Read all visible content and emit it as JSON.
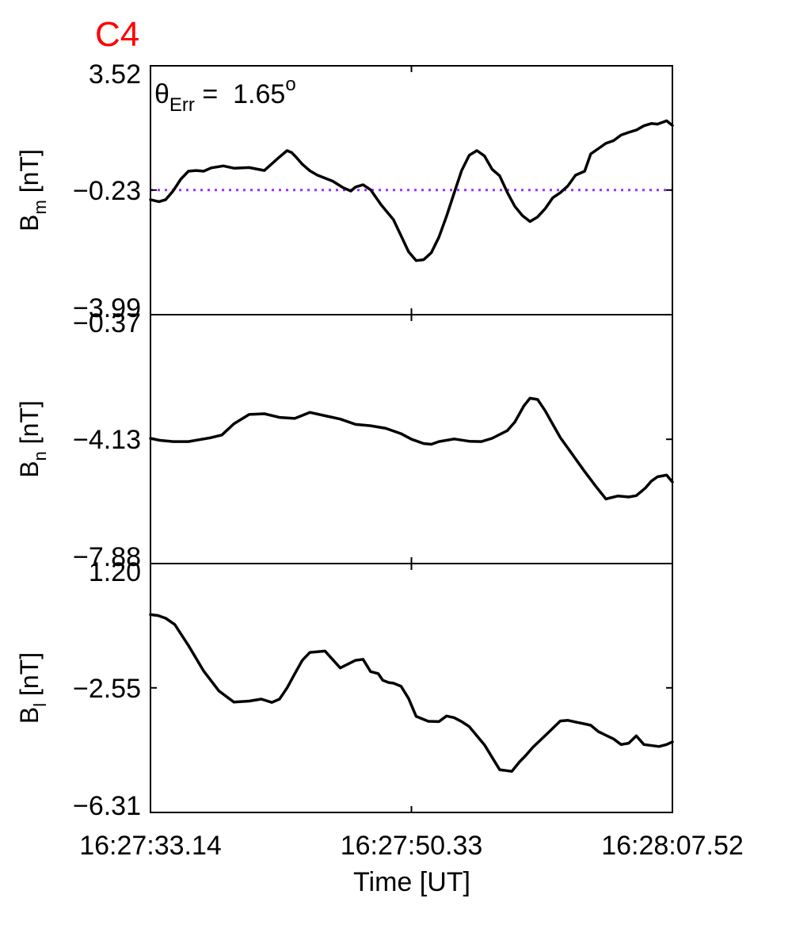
{
  "title": "C4",
  "title_color": "#ff0000",
  "annotation": {
    "symbol": "θ",
    "subscript": "Err",
    "equals": " =  ",
    "value": "1.65",
    "superscript": "o"
  },
  "chart_data": {
    "type": "line",
    "xlabel": "Time [UT]",
    "x_ticks": [
      "16:27:33.14",
      "16:27:50.33",
      "16:28:07.52"
    ],
    "x_range": [
      0,
      34.38
    ],
    "panels": [
      {
        "id": "bm",
        "ylabel_main": "B",
        "ylabel_sub": "m",
        "ylabel_unit": " [nT]",
        "yticks": [
          "3.52",
          "-0.23",
          "-3.99"
        ],
        "ylim": [
          -3.99,
          3.52
        ],
        "reference_line": {
          "y": -0.23,
          "color": "#9b30ff",
          "style": "dotted"
        },
        "line_color": "#000000",
        "x": [
          0,
          0.56,
          1.0,
          1.5,
          2.0,
          2.5,
          3.0,
          3.5,
          4.0,
          4.8,
          5.5,
          6.5,
          7.5,
          8.5,
          9.0,
          9.3,
          9.6,
          10.0,
          10.5,
          11.0,
          12.0,
          12.7,
          13.2,
          13.5,
          14.0,
          14.5,
          15.2,
          16.0,
          16.6,
          17.0,
          17.5,
          18.0,
          18.5,
          19.0,
          19.5,
          20.0,
          20.5,
          21.0,
          21.5,
          22.0,
          22.5,
          23.0,
          23.5,
          24.0,
          24.5,
          25.0,
          25.5,
          26.0,
          26.5,
          27.0,
          27.5,
          28.0,
          28.6,
          29.0,
          29.5,
          30.0,
          30.5,
          31.0,
          31.5,
          32.0,
          32.5,
          33.0,
          33.4,
          34.0,
          34.38
        ],
        "y": [
          -0.52,
          -0.58,
          -0.52,
          -0.25,
          0.1,
          0.34,
          0.36,
          0.34,
          0.44,
          0.5,
          0.43,
          0.45,
          0.36,
          0.77,
          0.96,
          0.9,
          0.76,
          0.55,
          0.35,
          0.22,
          0.04,
          -0.16,
          -0.26,
          -0.14,
          -0.07,
          -0.22,
          -0.68,
          -1.12,
          -1.7,
          -2.09,
          -2.36,
          -2.33,
          -2.12,
          -1.65,
          -1.02,
          -0.32,
          0.36,
          0.82,
          0.96,
          0.8,
          0.4,
          0.2,
          -0.3,
          -0.72,
          -1.0,
          -1.18,
          -1.04,
          -0.79,
          -0.46,
          -0.31,
          -0.1,
          0.22,
          0.34,
          0.86,
          1.02,
          1.18,
          1.26,
          1.43,
          1.51,
          1.58,
          1.71,
          1.78,
          1.76,
          1.86,
          1.72
        ]
      },
      {
        "id": "bn",
        "ylabel_main": "B",
        "ylabel_sub": "n",
        "ylabel_unit": " [nT]",
        "yticks": [
          "-0.37",
          "-4.13",
          "-7.88"
        ],
        "ylim": [
          -7.88,
          -0.37
        ],
        "line_color": "#000000",
        "x": [
          0,
          0.6,
          1.5,
          2.5,
          3.5,
          4.0,
          4.7,
          5.5,
          6.5,
          7.5,
          8.5,
          9.5,
          10.5,
          11.5,
          12.5,
          13.5,
          14.5,
          15.5,
          16.5,
          17.2,
          18.0,
          18.5,
          19.0,
          20.0,
          21.0,
          21.8,
          22.5,
          23.5,
          24.0,
          24.6,
          25.0,
          25.5,
          26.0,
          26.5,
          27.0,
          27.7,
          28.5,
          29.3,
          30.0,
          30.8,
          31.5,
          32.0,
          32.6,
          33.0,
          33.4,
          34.0,
          34.38
        ],
        "y": [
          -4.1,
          -4.16,
          -4.2,
          -4.2,
          -4.12,
          -4.08,
          -4.0,
          -3.66,
          -3.38,
          -3.36,
          -3.47,
          -3.5,
          -3.32,
          -3.42,
          -3.52,
          -3.68,
          -3.72,
          -3.8,
          -3.96,
          -4.13,
          -4.26,
          -4.28,
          -4.2,
          -4.12,
          -4.19,
          -4.2,
          -4.1,
          -3.87,
          -3.61,
          -3.12,
          -2.89,
          -2.93,
          -3.27,
          -3.68,
          -4.08,
          -4.53,
          -5.04,
          -5.53,
          -5.93,
          -5.84,
          -5.87,
          -5.83,
          -5.6,
          -5.39,
          -5.26,
          -5.21,
          -5.42
        ]
      },
      {
        "id": "bl",
        "ylabel_main": "B",
        "ylabel_sub": "l",
        "ylabel_unit": " [nT]",
        "yticks": [
          "1.20",
          "-2.55",
          "-6.31"
        ],
        "ylim": [
          -6.31,
          1.2
        ],
        "line_color": "#000000",
        "x": [
          0,
          0.5,
          1.0,
          1.6,
          2.5,
          3.5,
          4.5,
          5.5,
          6.5,
          7.3,
          8.0,
          8.5,
          9.0,
          9.5,
          10.0,
          10.5,
          11.5,
          12.5,
          13.5,
          14.0,
          14.5,
          15.0,
          15.3,
          15.7,
          16.0,
          16.5,
          17.0,
          17.5,
          18.3,
          19.0,
          19.5,
          20.0,
          20.5,
          21.0,
          22.0,
          23.0,
          23.8,
          24.3,
          24.7,
          25.2,
          26.0,
          27.0,
          27.5,
          28.0,
          28.5,
          29.0,
          29.5,
          30.5,
          31.0,
          31.5,
          32.0,
          32.5,
          33.5,
          34.0,
          34.38
        ],
        "y": [
          -0.34,
          -0.37,
          -0.45,
          -0.64,
          -1.27,
          -2.04,
          -2.64,
          -2.98,
          -2.95,
          -2.89,
          -2.99,
          -2.89,
          -2.55,
          -2.13,
          -1.72,
          -1.48,
          -1.44,
          -1.95,
          -1.72,
          -1.69,
          -2.06,
          -2.12,
          -2.32,
          -2.39,
          -2.41,
          -2.5,
          -2.87,
          -3.41,
          -3.56,
          -3.57,
          -3.4,
          -3.45,
          -3.57,
          -3.72,
          -4.27,
          -5.02,
          -5.07,
          -4.79,
          -4.6,
          -4.34,
          -3.99,
          -3.55,
          -3.53,
          -3.58,
          -3.63,
          -3.68,
          -3.87,
          -4.09,
          -4.26,
          -4.22,
          -4.0,
          -4.26,
          -4.32,
          -4.26,
          -4.18
        ]
      }
    ]
  }
}
